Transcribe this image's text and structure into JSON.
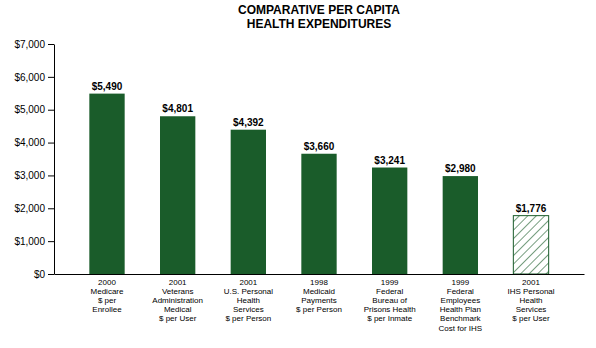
{
  "chart_data": {
    "type": "bar",
    "title": "COMPARATIVE PER CAPITA\nHEALTH EXPENDITURES",
    "categories": [
      "2000\nMedicare\n$ per\nEnrollee",
      "2001\nVeterans\nAdministration\nMedical\n$ per User",
      "2001\nU.S. Personal\nHealth\nServices\n$ per Person",
      "1998\nMedicaid\nPayments\n$ per Person",
      "1999\nFederal\nBureau of\nPrisons Health\n$ per Inmate",
      "1999\nFederal\nEmployees\nHealth Plan\nBenchmark\nCost for IHS",
      "2001\nIHS Personal\nHealth\nServices\n$ per User"
    ],
    "values": [
      5490,
      4801,
      4392,
      3660,
      3241,
      2980,
      1776
    ],
    "value_labels": [
      "$5,490",
      "$4,801",
      "$4,392",
      "$3,660",
      "$3,241",
      "$2,980",
      "$1,776"
    ],
    "data_labels": true,
    "color": "#1a5c2a",
    "ylim": [
      0,
      7000
    ],
    "yticks": [
      {
        "value": 0,
        "label": "$0"
      },
      {
        "value": 1000,
        "label": "$1,000"
      },
      {
        "value": 2000,
        "label": "$2,000"
      },
      {
        "value": 3000,
        "label": "$3,000"
      },
      {
        "value": 4000,
        "label": "$4,000"
      },
      {
        "value": 5000,
        "label": "$5,000"
      },
      {
        "value": 6000,
        "label": "$6,000"
      },
      {
        "value": 7000,
        "label": "$7,000"
      }
    ],
    "grid": false
  }
}
